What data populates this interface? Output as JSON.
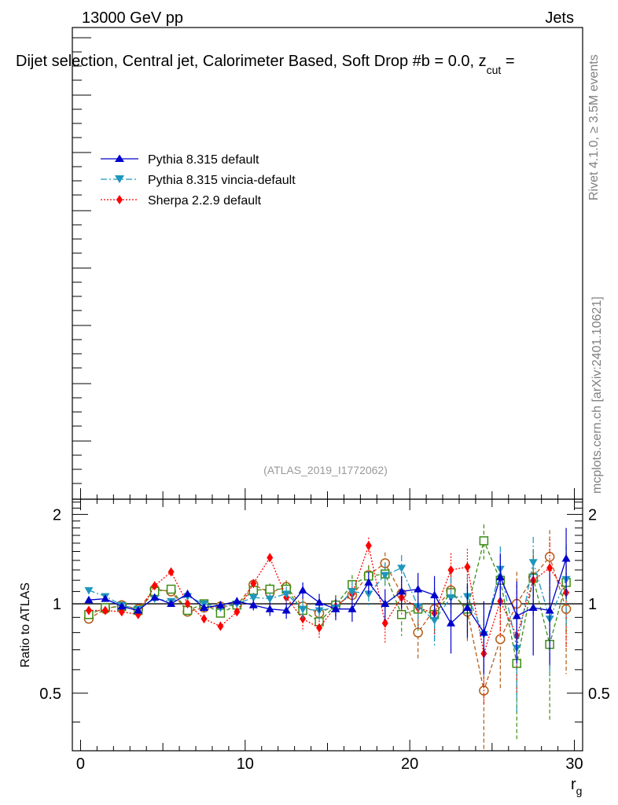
{
  "header": {
    "energy_label": "13000 GeV pp",
    "process_label": "Jets",
    "plot_title": "Dijet selection, Central jet, Calorimeter Based, Soft Drop #b = 0.0, z",
    "plot_title_sub": "cut",
    "plot_title_end": " = ",
    "analysis_id": "(ATLAS_2019_I1772062)"
  },
  "side_labels": {
    "rivet": "Rivet 4.1.0, ≥ 3.5M events",
    "mcplots": "mcplots.cern.ch [arXiv:2401.10621]"
  },
  "legend": [
    {
      "name": "Pythia 8.315 default",
      "color": "#0000cc",
      "marker": "triangle-up"
    },
    {
      "name": "Pythia 8.315 vincia-default",
      "color": "#1e96be",
      "marker": "triangle-down"
    },
    {
      "name": "Sherpa 2.2.9 default",
      "color": "#ff0000",
      "marker": "diamond"
    }
  ],
  "chart_data": {
    "type": "line",
    "xlabel": "r",
    "xlabel_sub": "g",
    "ylabel": "Ratio to ATLAS",
    "xlim": [
      -0.5,
      30.5
    ],
    "ylim": [
      0.32,
      2.25
    ],
    "y_scale": "log",
    "x_ticks": [
      "0",
      "10",
      "20",
      "30"
    ],
    "y_ticks": [
      "0.5",
      "1",
      "2"
    ],
    "x": [
      0.5,
      1.5,
      2.5,
      3.5,
      4.5,
      5.5,
      6.5,
      7.5,
      8.5,
      9.5,
      10.5,
      11.5,
      12.5,
      13.5,
      14.5,
      15.5,
      16.5,
      17.5,
      18.5,
      19.5,
      20.5,
      21.5,
      22.5,
      23.5,
      24.5,
      25.5,
      26.5,
      27.5,
      28.5,
      29.5
    ],
    "series": [
      {
        "name": "Pythia 8.315 default",
        "color": "#0000cc",
        "marker": "triangle-up",
        "dash": "solid",
        "values": [
          1.03,
          1.04,
          0.98,
          0.95,
          1.05,
          1.0,
          1.08,
          0.97,
          0.99,
          1.02,
          0.99,
          0.96,
          0.95,
          1.11,
          1.01,
          0.96,
          0.96,
          1.18,
          1.0,
          1.1,
          1.12,
          1.07,
          0.86,
          0.97,
          0.8,
          1.23,
          0.91,
          0.97,
          0.95,
          1.42
        ],
        "errors": [
          0.02,
          0.02,
          0.02,
          0.02,
          0.02,
          0.02,
          0.03,
          0.03,
          0.03,
          0.03,
          0.04,
          0.05,
          0.06,
          0.07,
          0.07,
          0.08,
          0.09,
          0.1,
          0.12,
          0.14,
          0.15,
          0.17,
          0.18,
          0.2,
          0.22,
          0.25,
          0.28,
          0.3,
          0.33,
          0.38
        ]
      },
      {
        "name": "Pythia 8.315 vincia-default",
        "color": "#1e96be",
        "marker": "triangle-down",
        "dash": "dashdot",
        "values": [
          1.11,
          1.06,
          0.99,
          0.96,
          1.04,
          1.02,
          1.06,
          1.0,
          0.97,
          1.0,
          1.05,
          1.04,
          1.08,
          0.96,
          0.95,
          0.97,
          1.1,
          1.08,
          1.25,
          1.32,
          0.98,
          0.88,
          1.05,
          1.06,
          0.79,
          1.31,
          0.71,
          1.38,
          0.89,
          1.21
        ],
        "errors": [
          0.02,
          0.02,
          0.02,
          0.02,
          0.02,
          0.02,
          0.03,
          0.03,
          0.03,
          0.03,
          0.04,
          0.05,
          0.06,
          0.07,
          0.07,
          0.08,
          0.09,
          0.1,
          0.12,
          0.14,
          0.15,
          0.17,
          0.18,
          0.2,
          0.22,
          0.25,
          0.28,
          0.3,
          0.33,
          0.38
        ]
      },
      {
        "name": "Sherpa 2.2.9 default",
        "color": "#ff0000",
        "marker": "diamond",
        "dash": "dotted",
        "values": [
          0.95,
          0.95,
          0.94,
          0.92,
          1.15,
          1.28,
          1.0,
          0.89,
          0.84,
          0.94,
          1.17,
          1.43,
          1.05,
          0.89,
          0.83,
          0.98,
          1.08,
          1.57,
          0.86,
          1.05,
          0.97,
          0.93,
          1.3,
          1.33,
          0.68,
          1.02,
          0.78,
          1.2,
          1.32,
          1.09
        ],
        "errors": [
          0.02,
          0.02,
          0.02,
          0.02,
          0.02,
          0.02,
          0.03,
          0.03,
          0.03,
          0.03,
          0.04,
          0.05,
          0.06,
          0.07,
          0.07,
          0.08,
          0.09,
          0.1,
          0.12,
          0.14,
          0.15,
          0.17,
          0.18,
          0.2,
          0.22,
          0.25,
          0.28,
          0.3,
          0.33,
          0.38
        ]
      },
      {
        "name": "",
        "color": "#3c8c14",
        "marker": "open-square",
        "dash": "dashed",
        "values": [
          0.92,
          0.97,
          0.98,
          0.95,
          1.1,
          1.12,
          0.95,
          1.0,
          0.93,
          0.99,
          1.11,
          1.12,
          1.12,
          0.95,
          0.87,
          0.99,
          1.16,
          1.24,
          1.26,
          0.92,
          0.96,
          0.92,
          1.09,
          0.96,
          1.63,
          1.2,
          0.63,
          1.22,
          0.73,
          1.18
        ],
        "errors": [
          0.02,
          0.02,
          0.02,
          0.02,
          0.02,
          0.02,
          0.03,
          0.03,
          0.03,
          0.03,
          0.04,
          0.05,
          0.06,
          0.07,
          0.07,
          0.08,
          0.09,
          0.1,
          0.12,
          0.14,
          0.15,
          0.17,
          0.18,
          0.2,
          0.22,
          0.25,
          0.28,
          0.3,
          0.33,
          0.38
        ]
      },
      {
        "name": "",
        "color": "#b45a14",
        "marker": "open-circle",
        "dash": "dashed",
        "values": [
          0.89,
          0.96,
          0.99,
          0.96,
          1.12,
          1.1,
          0.94,
          0.97,
          0.98,
          0.99,
          1.16,
          1.09,
          1.14,
          0.98,
          0.93,
          0.99,
          1.07,
          1.25,
          1.37,
          1.08,
          0.8,
          0.96,
          1.11,
          0.94,
          0.51,
          0.76,
          1.0,
          1.23,
          1.44,
          0.96
        ],
        "errors": [
          0.02,
          0.02,
          0.02,
          0.02,
          0.02,
          0.02,
          0.03,
          0.03,
          0.03,
          0.03,
          0.04,
          0.05,
          0.06,
          0.07,
          0.07,
          0.08,
          0.09,
          0.1,
          0.12,
          0.14,
          0.15,
          0.17,
          0.18,
          0.2,
          0.22,
          0.25,
          0.28,
          0.3,
          0.33,
          0.38
        ]
      }
    ]
  }
}
